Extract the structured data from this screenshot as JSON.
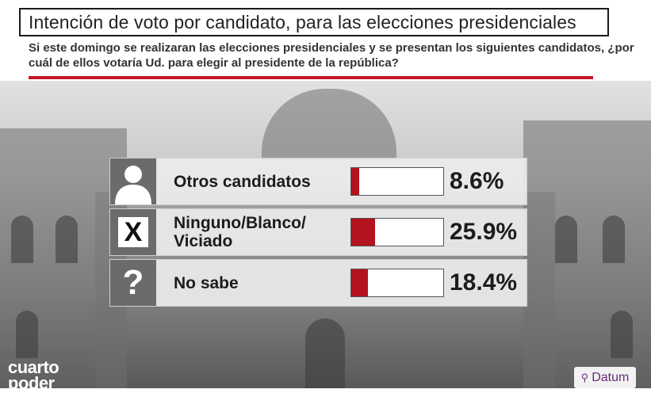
{
  "header": {
    "title": "Intención de voto por candidato, para las elecciones presidenciales",
    "question": "Si este domingo se realizaran las elecciones presidenciales y se presentan los siguientes candidatos, ¿por cuál de ellos votaría Ud. para elegir al presidente de la república?"
  },
  "colors": {
    "bar": "#b3121f",
    "rule": "#c4162a",
    "icon_bg": "#6b6b6b"
  },
  "chart_data": {
    "type": "bar",
    "orientation": "horizontal",
    "title": "Intención de voto por candidato, para las elecciones presidenciales",
    "categories": [
      "Otros candidatos",
      "Ninguno/Blanco/ Viciado",
      "No sabe"
    ],
    "values": [
      8.6,
      25.9,
      18.4
    ],
    "value_labels": [
      "8.6%",
      "25.9%",
      "18.4%"
    ],
    "icons": [
      "person-icon",
      "x-mark-icon",
      "question-mark-icon"
    ],
    "icon_glyphs": [
      "",
      "X",
      "?"
    ],
    "xlim": [
      0,
      100
    ]
  },
  "brand": {
    "left_line1": "cuarto",
    "left_line2": "poder",
    "right": "Datum"
  }
}
